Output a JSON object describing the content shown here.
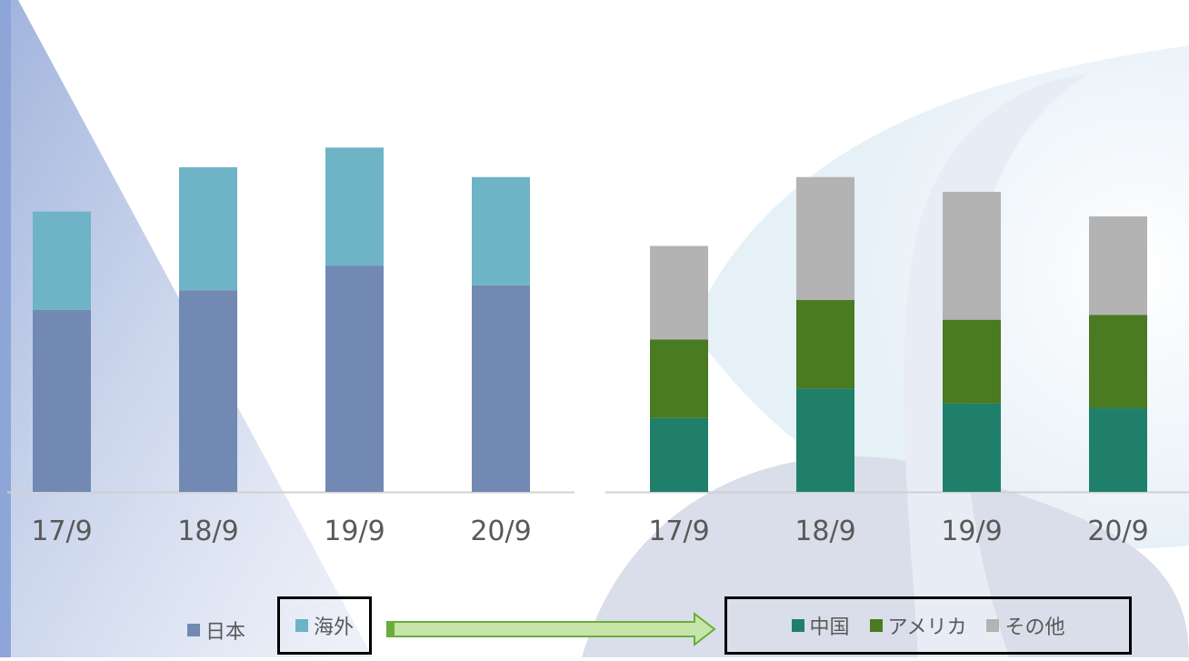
{
  "colors": {
    "japan": "#7189b3",
    "overseas": "#6eb3c6",
    "china": "#1f7f6a",
    "america": "#4a7a21",
    "others": "#b3b3b3",
    "arrow_fill": "#c6e5a8",
    "arrow_stroke": "#6aad3a",
    "background_shape": "#d8dde9"
  },
  "chart_data": [
    {
      "type": "bar",
      "stacked": true,
      "categories": [
        "17/9",
        "18/9",
        "19/9",
        "20/9"
      ],
      "series": [
        {
          "name": "日本",
          "values": [
            37,
            41,
            46,
            42
          ]
        },
        {
          "name": "海外",
          "values": [
            20,
            25,
            24,
            22
          ]
        }
      ],
      "ylim": [
        0,
        100
      ],
      "grid": false
    },
    {
      "type": "bar",
      "stacked": true,
      "categories": [
        "17/9",
        "18/9",
        "19/9",
        "20/9"
      ],
      "series": [
        {
          "name": "中国",
          "values": [
            15,
            21,
            18,
            17
          ]
        },
        {
          "name": "アメリカ",
          "values": [
            16,
            18,
            17,
            19
          ]
        },
        {
          "name": "その他",
          "values": [
            19,
            25,
            26,
            20
          ]
        }
      ],
      "ylim": [
        0,
        100
      ],
      "grid": false
    }
  ],
  "legend": {
    "left": [
      "日本",
      "海外"
    ],
    "right": [
      "中国",
      "アメリカ",
      "その他"
    ]
  }
}
